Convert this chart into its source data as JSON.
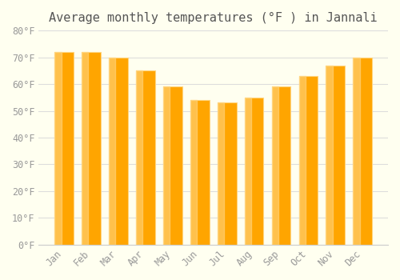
{
  "title": "Average monthly temperatures (°F ) in Jannali",
  "months": [
    "Jan",
    "Feb",
    "Mar",
    "Apr",
    "May",
    "Jun",
    "Jul",
    "Aug",
    "Sep",
    "Oct",
    "Nov",
    "Dec"
  ],
  "values": [
    72,
    72,
    70,
    65,
    59,
    54,
    53,
    55,
    59,
    63,
    67,
    70
  ],
  "bar_color_face": "#FFA500",
  "bar_color_edge": "#FFD580",
  "ylim": [
    0,
    80
  ],
  "yticks": [
    0,
    10,
    20,
    30,
    40,
    50,
    60,
    70,
    80
  ],
  "background_color": "#FFFFF0",
  "grid_color": "#DDDDDD",
  "title_fontsize": 11,
  "tick_fontsize": 8.5
}
